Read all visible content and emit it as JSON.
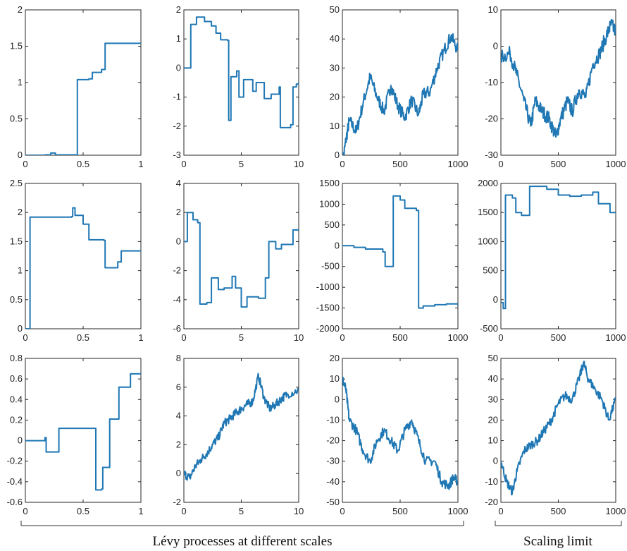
{
  "line_color": "#1f77b4",
  "captions": {
    "left": "Lévy processes at different scales",
    "right": "Scaling limit"
  },
  "chart_data": [
    {
      "type": "line",
      "xlim": [
        0,
        1
      ],
      "ylim": [
        0,
        2
      ],
      "xticks": [
        0,
        0.5,
        1
      ],
      "yticks": [
        0,
        0.5,
        1,
        1.5,
        2
      ],
      "series": [
        {
          "style": "step",
          "points": [
            [
              0,
              0
            ],
            [
              0.17,
              0.005
            ],
            [
              0.22,
              0.03
            ],
            [
              0.26,
              0.005
            ],
            [
              0.45,
              0
            ],
            [
              0.45,
              1.04
            ],
            [
              0.55,
              1.05
            ],
            [
              0.58,
              1.14
            ],
            [
              0.66,
              1.18
            ],
            [
              0.69,
              1.54
            ],
            [
              1,
              1.54
            ]
          ]
        }
      ]
    },
    {
      "type": "line",
      "xlim": [
        0,
        10
      ],
      "ylim": [
        -3,
        2
      ],
      "xticks": [
        0,
        5,
        10
      ],
      "yticks": [
        -3,
        -2,
        -1,
        0,
        1,
        2
      ],
      "series": [
        {
          "style": "step",
          "points": [
            [
              0,
              0
            ],
            [
              0.5,
              0
            ],
            [
              0.6,
              1.5
            ],
            [
              1.1,
              1.75
            ],
            [
              1.8,
              1.6
            ],
            [
              2.4,
              1.45
            ],
            [
              2.8,
              1.2
            ],
            [
              3.2,
              0.97
            ],
            [
              3.8,
              0.95
            ],
            [
              3.9,
              -1.8
            ],
            [
              4.1,
              -0.3
            ],
            [
              4.6,
              -0.1
            ],
            [
              4.8,
              -1.0
            ],
            [
              5.2,
              -0.4
            ],
            [
              6.0,
              -0.8
            ],
            [
              6.3,
              -0.5
            ],
            [
              7.0,
              -1.05
            ],
            [
              7.6,
              -0.9
            ],
            [
              8.3,
              -0.65
            ],
            [
              8.4,
              -2.05
            ],
            [
              9.3,
              -1.95
            ],
            [
              9.5,
              -0.65
            ],
            [
              9.8,
              -0.55
            ],
            [
              10,
              -0.5
            ]
          ]
        }
      ]
    },
    {
      "type": "line",
      "xlim": [
        0,
        1000
      ],
      "ylim": [
        0,
        50
      ],
      "xticks": [
        0,
        500,
        1000
      ],
      "yticks": [
        0,
        10,
        20,
        30,
        40,
        50
      ],
      "series": [
        {
          "style": "noisy",
          "amp": 2.2,
          "points": [
            [
              0,
              -3
            ],
            [
              30,
              5
            ],
            [
              60,
              12
            ],
            [
              120,
              8
            ],
            [
              180,
              18
            ],
            [
              240,
              27
            ],
            [
              300,
              20
            ],
            [
              360,
              15
            ],
            [
              420,
              24
            ],
            [
              480,
              17
            ],
            [
              540,
              13
            ],
            [
              600,
              19
            ],
            [
              660,
              14
            ],
            [
              700,
              21
            ],
            [
              760,
              22
            ],
            [
              820,
              30
            ],
            [
              880,
              36
            ],
            [
              940,
              41
            ],
            [
              1000,
              36
            ]
          ]
        }
      ]
    },
    {
      "type": "line",
      "xlim": [
        0,
        1000
      ],
      "ylim": [
        -30,
        10
      ],
      "xticks": [
        0,
        500,
        1000
      ],
      "yticks": [
        -30,
        -20,
        -10,
        0,
        10
      ],
      "series": [
        {
          "style": "noisy",
          "amp": 2.0,
          "points": [
            [
              0,
              -3
            ],
            [
              80,
              -2
            ],
            [
              140,
              -8
            ],
            [
              200,
              -15
            ],
            [
              260,
              -22
            ],
            [
              300,
              -15
            ],
            [
              360,
              -18
            ],
            [
              420,
              -20
            ],
            [
              480,
              -25
            ],
            [
              520,
              -20
            ],
            [
              580,
              -15
            ],
            [
              620,
              -18
            ],
            [
              680,
              -12
            ],
            [
              740,
              -14
            ],
            [
              800,
              -5
            ],
            [
              860,
              -2
            ],
            [
              920,
              3
            ],
            [
              960,
              6
            ],
            [
              1000,
              4
            ]
          ]
        }
      ]
    },
    {
      "type": "line",
      "xlim": [
        0,
        1
      ],
      "ylim": [
        0,
        2.5
      ],
      "xticks": [
        0,
        0.5,
        1
      ],
      "yticks": [
        0,
        0.5,
        1,
        1.5,
        2,
        2.5
      ],
      "series": [
        {
          "style": "step",
          "points": [
            [
              0,
              0
            ],
            [
              0.03,
              0
            ],
            [
              0.04,
              1.92
            ],
            [
              0.4,
              1.93
            ],
            [
              0.41,
              2.08
            ],
            [
              0.43,
              1.95
            ],
            [
              0.5,
              1.8
            ],
            [
              0.55,
              1.53
            ],
            [
              0.68,
              1.52
            ],
            [
              0.69,
              1.05
            ],
            [
              0.75,
              1.05
            ],
            [
              0.8,
              1.15
            ],
            [
              0.83,
              1.34
            ],
            [
              1,
              1.34
            ]
          ]
        }
      ]
    },
    {
      "type": "line",
      "xlim": [
        0,
        10
      ],
      "ylim": [
        -6,
        4
      ],
      "xticks": [
        0,
        5,
        10
      ],
      "yticks": [
        -6,
        -4,
        -2,
        0,
        2,
        4
      ],
      "series": [
        {
          "style": "step",
          "points": [
            [
              0,
              0
            ],
            [
              0.3,
              2
            ],
            [
              0.8,
              1.5
            ],
            [
              1.2,
              1.3
            ],
            [
              1.4,
              -4.3
            ],
            [
              2,
              -4.2
            ],
            [
              2.4,
              -2.5
            ],
            [
              3,
              -3.3
            ],
            [
              3.5,
              -3.2
            ],
            [
              4.2,
              -2.4
            ],
            [
              4.5,
              -3.2
            ],
            [
              5,
              -4.5
            ],
            [
              5.5,
              -3.8
            ],
            [
              6.5,
              -3.9
            ],
            [
              7.1,
              -2.5
            ],
            [
              7.4,
              0
            ],
            [
              8,
              -0.5
            ],
            [
              8.5,
              -0.2
            ],
            [
              9.5,
              0.8
            ],
            [
              10,
              0.7
            ]
          ]
        }
      ]
    },
    {
      "type": "line",
      "xlim": [
        0,
        1000
      ],
      "ylim": [
        -2000,
        1500
      ],
      "xticks": [
        0,
        500,
        1000
      ],
      "yticks": [
        -2000,
        -1500,
        -1000,
        -500,
        0,
        500,
        1000,
        1500
      ],
      "series": [
        {
          "style": "step",
          "points": [
            [
              0,
              0
            ],
            [
              100,
              -40
            ],
            [
              200,
              -80
            ],
            [
              350,
              -150
            ],
            [
              370,
              -500
            ],
            [
              430,
              -500
            ],
            [
              440,
              1200
            ],
            [
              500,
              1100
            ],
            [
              540,
              900
            ],
            [
              640,
              850
            ],
            [
              660,
              -1500
            ],
            [
              700,
              -1450
            ],
            [
              800,
              -1420
            ],
            [
              900,
              -1400
            ],
            [
              1000,
              -1450
            ]
          ]
        }
      ]
    },
    {
      "type": "line",
      "xlim": [
        0,
        1000
      ],
      "ylim": [
        -500,
        2000
      ],
      "xticks": [
        0,
        500,
        1000
      ],
      "yticks": [
        -500,
        0,
        500,
        1000,
        1500,
        2000
      ],
      "series": [
        {
          "style": "step",
          "points": [
            [
              0,
              -50
            ],
            [
              20,
              -150
            ],
            [
              40,
              1800
            ],
            [
              100,
              1750
            ],
            [
              130,
              1500
            ],
            [
              180,
              1450
            ],
            [
              230,
              1450
            ],
            [
              250,
              1950
            ],
            [
              400,
              1900
            ],
            [
              500,
              1800
            ],
            [
              600,
              1780
            ],
            [
              700,
              1800
            ],
            [
              800,
              1850
            ],
            [
              850,
              1650
            ],
            [
              950,
              1500
            ],
            [
              1000,
              1500
            ]
          ]
        }
      ]
    },
    {
      "type": "line",
      "xlim": [
        0,
        1
      ],
      "ylim": [
        -0.6,
        0.8
      ],
      "xticks": [
        0,
        0.5,
        1
      ],
      "yticks": [
        -0.6,
        -0.4,
        -0.2,
        0,
        0.2,
        0.4,
        0.6,
        0.8
      ],
      "series": [
        {
          "style": "step",
          "points": [
            [
              0,
              0
            ],
            [
              0.15,
              0
            ],
            [
              0.17,
              0.03
            ],
            [
              0.18,
              -0.11
            ],
            [
              0.28,
              -0.11
            ],
            [
              0.29,
              0.12
            ],
            [
              0.6,
              0.12
            ],
            [
              0.61,
              -0.48
            ],
            [
              0.66,
              -0.47
            ],
            [
              0.67,
              -0.26
            ],
            [
              0.72,
              -0.26
            ],
            [
              0.73,
              0.21
            ],
            [
              0.8,
              0.21
            ],
            [
              0.81,
              0.52
            ],
            [
              0.9,
              0.52
            ],
            [
              0.91,
              0.65
            ],
            [
              1,
              0.65
            ]
          ]
        }
      ]
    },
    {
      "type": "line",
      "xlim": [
        0,
        10
      ],
      "ylim": [
        -2,
        8
      ],
      "xticks": [
        0,
        5,
        10
      ],
      "yticks": [
        -2,
        0,
        2,
        4,
        6,
        8
      ],
      "series": [
        {
          "style": "noisy",
          "amp": 0.3,
          "points": [
            [
              0,
              0
            ],
            [
              0.5,
              -0.3
            ],
            [
              1,
              0.5
            ],
            [
              1.5,
              1
            ],
            [
              2,
              1.4
            ],
            [
              2.5,
              2
            ],
            [
              3,
              2.5
            ],
            [
              3.5,
              3.5
            ],
            [
              4,
              3.8
            ],
            [
              4.5,
              4.2
            ],
            [
              5,
              4.5
            ],
            [
              5.5,
              4.8
            ],
            [
              6,
              5
            ],
            [
              6.5,
              6.8
            ],
            [
              7,
              5.2
            ],
            [
              7.5,
              4.5
            ],
            [
              8,
              4.8
            ],
            [
              8.5,
              5.2
            ],
            [
              9,
              5.5
            ],
            [
              10,
              5.8
            ]
          ]
        }
      ]
    },
    {
      "type": "line",
      "xlim": [
        0,
        1000
      ],
      "ylim": [
        -50,
        20
      ],
      "xticks": [
        0,
        500,
        1000
      ],
      "yticks": [
        -50,
        -40,
        -30,
        -20,
        -10,
        0,
        10,
        20
      ],
      "series": [
        {
          "style": "noisy",
          "amp": 2.4,
          "points": [
            [
              0,
              10
            ],
            [
              30,
              5
            ],
            [
              60,
              -10
            ],
            [
              120,
              -15
            ],
            [
              180,
              -25
            ],
            [
              240,
              -30
            ],
            [
              300,
              -20
            ],
            [
              360,
              -15
            ],
            [
              420,
              -20
            ],
            [
              480,
              -25
            ],
            [
              540,
              -15
            ],
            [
              600,
              -10
            ],
            [
              660,
              -20
            ],
            [
              720,
              -30
            ],
            [
              800,
              -30
            ],
            [
              860,
              -40
            ],
            [
              920,
              -42
            ],
            [
              960,
              -38
            ],
            [
              1000,
              -40
            ]
          ]
        }
      ]
    },
    {
      "type": "line",
      "xlim": [
        0,
        1000
      ],
      "ylim": [
        -20,
        50
      ],
      "xticks": [
        0,
        500,
        1000
      ],
      "yticks": [
        -20,
        -10,
        0,
        10,
        20,
        30,
        40,
        50
      ],
      "series": [
        {
          "style": "noisy",
          "amp": 2.2,
          "points": [
            [
              0,
              0
            ],
            [
              50,
              -10
            ],
            [
              100,
              -15
            ],
            [
              140,
              -5
            ],
            [
              200,
              5
            ],
            [
              260,
              8
            ],
            [
              320,
              10
            ],
            [
              380,
              15
            ],
            [
              440,
              20
            ],
            [
              500,
              28
            ],
            [
              560,
              32
            ],
            [
              620,
              30
            ],
            [
              680,
              40
            ],
            [
              720,
              48
            ],
            [
              760,
              40
            ],
            [
              820,
              35
            ],
            [
              880,
              30
            ],
            [
              940,
              20
            ],
            [
              1000,
              30
            ]
          ]
        }
      ]
    }
  ]
}
